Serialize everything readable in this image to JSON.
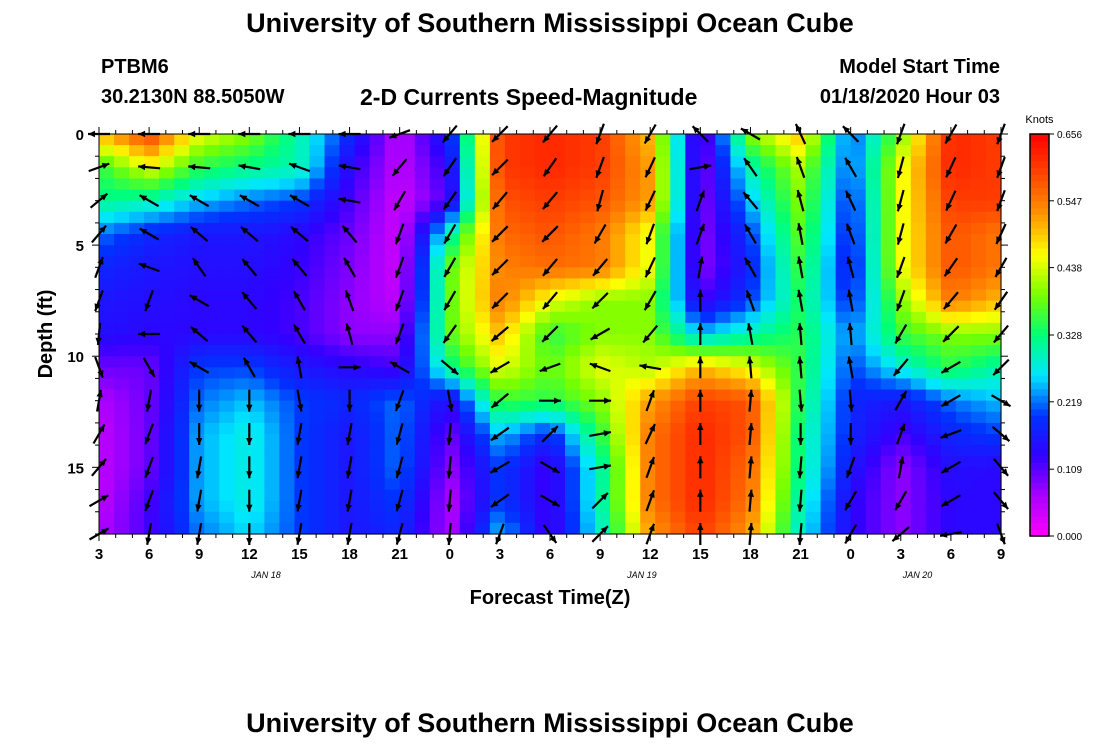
{
  "title": "University of Southern Mississippi Ocean Cube",
  "footer_title": "University of Southern Mississippi Ocean Cube",
  "station": {
    "id": "PTBM6",
    "location": "30.2130N 88.5050W"
  },
  "subtitle": "2-D Currents Speed-Magnitude",
  "model": {
    "label": "Model Start Time",
    "time": "01/18/2020 Hour 03"
  },
  "chart_data": {
    "type": "heatmap",
    "title": "2-D Currents Speed-Magnitude",
    "xlabel": "Forecast Time(Z)",
    "ylabel": "Depth (ft)",
    "x_range_hours_since_jan18_00": [
      3,
      57
    ],
    "y_range_ft": [
      0,
      18
    ],
    "y_inverted": true,
    "x_ticks": [
      {
        "hour": 3,
        "label": "3"
      },
      {
        "hour": 6,
        "label": "6"
      },
      {
        "hour": 9,
        "label": "9"
      },
      {
        "hour": 12,
        "label": "12"
      },
      {
        "hour": 15,
        "label": "15"
      },
      {
        "hour": 18,
        "label": "18"
      },
      {
        "hour": 21,
        "label": "21"
      },
      {
        "hour": 24,
        "label": "0"
      },
      {
        "hour": 27,
        "label": "3"
      },
      {
        "hour": 30,
        "label": "6"
      },
      {
        "hour": 33,
        "label": "9"
      },
      {
        "hour": 36,
        "label": "12"
      },
      {
        "hour": 39,
        "label": "15"
      },
      {
        "hour": 42,
        "label": "18"
      },
      {
        "hour": 45,
        "label": "21"
      },
      {
        "hour": 48,
        "label": "0"
      },
      {
        "hour": 51,
        "label": "3"
      },
      {
        "hour": 54,
        "label": "6"
      },
      {
        "hour": 57,
        "label": "9"
      }
    ],
    "date_labels": [
      {
        "hour": 13,
        "label": "JAN 18"
      },
      {
        "hour": 35.5,
        "label": "JAN 19"
      },
      {
        "hour": 52,
        "label": "JAN 20"
      }
    ],
    "y_ticks": [
      {
        "depth": 0,
        "label": "0"
      },
      {
        "depth": 5,
        "label": "5"
      },
      {
        "depth": 10,
        "label": "10"
      },
      {
        "depth": 15,
        "label": "15"
      }
    ],
    "colorbar": {
      "title": "Knots",
      "min": 0,
      "max": 0.656,
      "tick_values": [
        0.0,
        0.109,
        0.219,
        0.328,
        0.438,
        0.547,
        0.656
      ],
      "tick_labels": [
        "0.000",
        "0.109",
        "0.219",
        "0.328",
        "0.438",
        "0.547",
        "0.656"
      ]
    },
    "times": [
      3,
      6,
      9,
      12,
      15,
      18,
      21,
      24,
      27,
      30,
      33,
      36,
      39,
      42,
      45,
      48,
      51,
      54,
      57
    ],
    "depths": [
      0,
      1.5,
      3,
      4.5,
      6,
      7.5,
      9,
      10.5,
      12,
      13.5,
      15,
      16.5,
      18
    ],
    "speed_knots": [
      [
        0.5,
        0.6,
        0.45,
        0.4,
        0.3,
        0.18,
        0.05,
        0.18,
        0.6,
        0.62,
        0.6,
        0.5,
        0.08,
        0.4,
        0.5,
        0.2,
        0.4,
        0.62,
        0.6
      ],
      [
        0.35,
        0.45,
        0.35,
        0.32,
        0.3,
        0.14,
        0.05,
        0.14,
        0.6,
        0.62,
        0.6,
        0.52,
        0.08,
        0.3,
        0.42,
        0.2,
        0.45,
        0.62,
        0.6
      ],
      [
        0.32,
        0.3,
        0.25,
        0.22,
        0.2,
        0.12,
        0.04,
        0.12,
        0.58,
        0.6,
        0.58,
        0.52,
        0.08,
        0.25,
        0.4,
        0.18,
        0.45,
        0.6,
        0.6
      ],
      [
        0.22,
        0.18,
        0.16,
        0.16,
        0.14,
        0.1,
        0.04,
        0.3,
        0.56,
        0.58,
        0.55,
        0.45,
        0.08,
        0.2,
        0.38,
        0.17,
        0.45,
        0.58,
        0.55
      ],
      [
        0.18,
        0.16,
        0.15,
        0.15,
        0.13,
        0.09,
        0.04,
        0.38,
        0.54,
        0.56,
        0.55,
        0.45,
        0.08,
        0.18,
        0.36,
        0.16,
        0.45,
        0.58,
        0.55
      ],
      [
        0.16,
        0.15,
        0.14,
        0.14,
        0.12,
        0.08,
        0.05,
        0.38,
        0.55,
        0.45,
        0.4,
        0.4,
        0.12,
        0.2,
        0.34,
        0.18,
        0.4,
        0.55,
        0.5
      ],
      [
        0.15,
        0.14,
        0.14,
        0.14,
        0.12,
        0.08,
        0.08,
        0.38,
        0.5,
        0.35,
        0.4,
        0.4,
        0.25,
        0.3,
        0.35,
        0.22,
        0.36,
        0.4,
        0.4
      ],
      [
        0.1,
        0.1,
        0.2,
        0.2,
        0.16,
        0.14,
        0.12,
        0.32,
        0.45,
        0.38,
        0.45,
        0.42,
        0.5,
        0.45,
        0.35,
        0.2,
        0.28,
        0.35,
        0.3
      ],
      [
        0.06,
        0.1,
        0.22,
        0.25,
        0.2,
        0.18,
        0.22,
        0.14,
        0.36,
        0.35,
        0.4,
        0.52,
        0.6,
        0.58,
        0.34,
        0.18,
        0.16,
        0.22,
        0.25
      ],
      [
        0.05,
        0.1,
        0.24,
        0.28,
        0.2,
        0.16,
        0.22,
        0.1,
        0.25,
        0.18,
        0.35,
        0.55,
        0.62,
        0.58,
        0.32,
        0.18,
        0.12,
        0.18,
        0.2
      ],
      [
        0.05,
        0.1,
        0.24,
        0.28,
        0.2,
        0.16,
        0.22,
        0.08,
        0.2,
        0.12,
        0.3,
        0.55,
        0.62,
        0.56,
        0.32,
        0.16,
        0.08,
        0.15,
        0.14
      ],
      [
        0.05,
        0.12,
        0.24,
        0.28,
        0.2,
        0.16,
        0.2,
        0.06,
        0.2,
        0.12,
        0.3,
        0.55,
        0.62,
        0.55,
        0.3,
        0.14,
        0.08,
        0.14,
        0.14
      ],
      [
        0.06,
        0.12,
        0.22,
        0.26,
        0.2,
        0.16,
        0.18,
        0.06,
        0.25,
        0.12,
        0.28,
        0.52,
        0.6,
        0.52,
        0.28,
        0.14,
        0.08,
        0.14,
        0.14
      ]
    ],
    "direction_deg": [
      [
        270,
        270,
        270,
        270,
        270,
        270,
        250,
        220,
        225,
        220,
        200,
        210,
        315,
        300,
        335,
        315,
        200,
        210,
        200
      ],
      [
        70,
        275,
        275,
        280,
        290,
        280,
        220,
        215,
        225,
        215,
        200,
        205,
        80,
        325,
        340,
        330,
        195,
        205,
        200
      ],
      [
        50,
        300,
        300,
        300,
        300,
        280,
        210,
        215,
        220,
        220,
        195,
        205,
        20,
        320,
        345,
        335,
        195,
        205,
        200
      ],
      [
        40,
        300,
        310,
        310,
        310,
        320,
        200,
        210,
        225,
        225,
        210,
        200,
        20,
        330,
        350,
        340,
        195,
        210,
        205
      ],
      [
        20,
        290,
        325,
        320,
        320,
        330,
        200,
        210,
        225,
        220,
        220,
        205,
        10,
        330,
        350,
        345,
        200,
        215,
        210
      ],
      [
        200,
        200,
        300,
        320,
        330,
        340,
        200,
        210,
        225,
        220,
        225,
        210,
        0,
        340,
        350,
        350,
        200,
        220,
        215
      ],
      [
        185,
        270,
        310,
        320,
        330,
        345,
        200,
        215,
        230,
        225,
        240,
        220,
        0,
        350,
        355,
        355,
        210,
        225,
        220
      ],
      [
        160,
        150,
        300,
        330,
        350,
        90,
        300,
        130,
        240,
        250,
        290,
        280,
        0,
        355,
        355,
        350,
        220,
        240,
        225
      ],
      [
        10,
        190,
        180,
        180,
        170,
        180,
        200,
        170,
        230,
        90,
        90,
        20,
        0,
        5,
        175,
        175,
        30,
        240,
        120
      ],
      [
        30,
        200,
        180,
        180,
        190,
        190,
        195,
        185,
        235,
        45,
        80,
        25,
        0,
        5,
        180,
        180,
        20,
        250,
        130
      ],
      [
        40,
        200,
        190,
        180,
        190,
        190,
        195,
        185,
        240,
        120,
        80,
        20,
        0,
        5,
        185,
        200,
        10,
        240,
        140
      ],
      [
        60,
        200,
        190,
        180,
        190,
        190,
        195,
        185,
        235,
        120,
        45,
        20,
        0,
        5,
        185,
        210,
        210,
        240,
        140
      ],
      [
        60,
        190,
        190,
        180,
        190,
        190,
        195,
        185,
        200,
        145,
        45,
        20,
        0,
        5,
        185,
        210,
        230,
        260,
        160
      ]
    ]
  }
}
